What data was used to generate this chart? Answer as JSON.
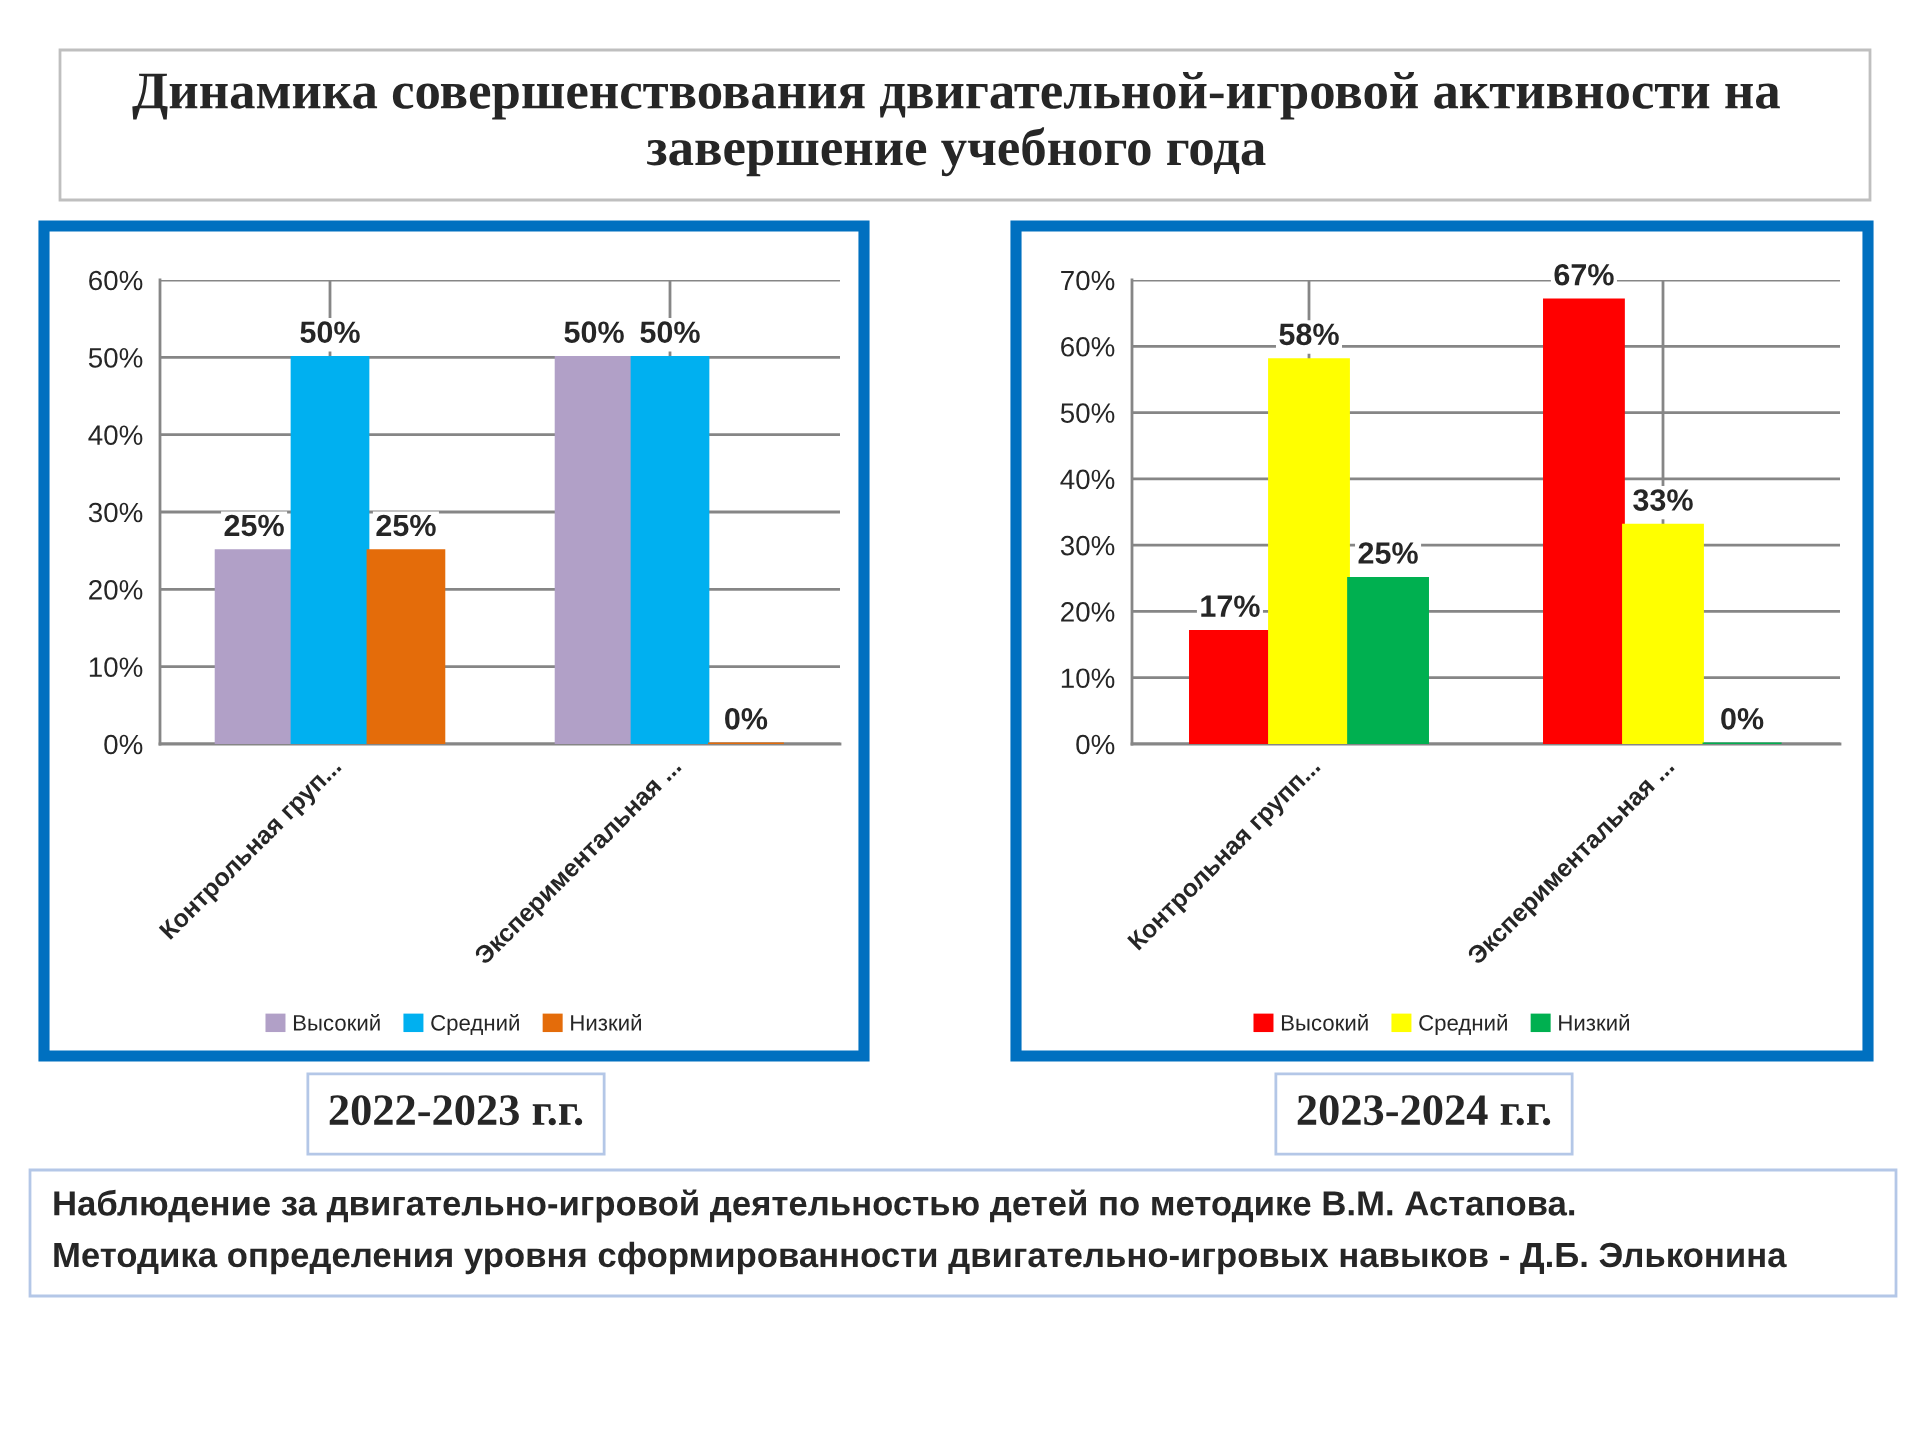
{
  "chart_data": [
    {
      "type": "bar",
      "title": "Динамика совершенствования двигательной-игровой активности на завершение учебного года",
      "subtitle": "2022-2023 г.г.",
      "categories": [
        "Контрольная груп...",
        "Экспериментальная ..."
      ],
      "series": [
        {
          "name": "Высокий",
          "color": "#b1a0c7",
          "values": [
            25,
            50
          ],
          "value_labels": [
            "25%",
            "50%"
          ]
        },
        {
          "name": "Средний",
          "color": "#00b0f0",
          "values": [
            50,
            50
          ],
          "value_labels": [
            "50%",
            "50%"
          ]
        },
        {
          "name": "Низкий",
          "color": "#e46c0a",
          "values": [
            25,
            0
          ],
          "value_labels": [
            "25%",
            "0%"
          ]
        }
      ],
      "ylim": [
        0,
        60
      ],
      "yticks": [
        {
          "value": 0,
          "label": "0%"
        },
        {
          "value": 10,
          "label": "10%"
        },
        {
          "value": 20,
          "label": "20%"
        },
        {
          "value": 30,
          "label": "30%"
        },
        {
          "value": 40,
          "label": "40%"
        },
        {
          "value": 50,
          "label": "50%"
        },
        {
          "value": 60,
          "label": "60%"
        }
      ],
      "grid": true,
      "legend": "bottom",
      "annotations": [
        "Наблюдение за двигательно-игровой деятельностью детей по методике В.М. Астапова.",
        "Методика определения уровня сформированности двигательно-игровых навыков - Д.Б. Эльконина"
      ]
    },
    {
      "type": "bar",
      "subtitle": "2023-2024 г.г.",
      "categories": [
        "Контрольная групп...",
        "Экспериментальная ..."
      ],
      "series": [
        {
          "name": "Высокий",
          "color": "#ff0000",
          "values": [
            17,
            67
          ],
          "value_labels": [
            "17%",
            "67%"
          ]
        },
        {
          "name": "Средний",
          "color": "#ffff00",
          "values": [
            58,
            33
          ],
          "value_labels": [
            "58%",
            "33%"
          ]
        },
        {
          "name": "Низкий",
          "color": "#00b050",
          "values": [
            25,
            0
          ],
          "value_labels": [
            "25%",
            "0%"
          ]
        }
      ],
      "ylim": [
        0,
        70
      ],
      "yticks": [
        {
          "value": 0,
          "label": "0%"
        },
        {
          "value": 10,
          "label": "10%"
        },
        {
          "value": 20,
          "label": "20%"
        },
        {
          "value": 30,
          "label": "30%"
        },
        {
          "value": 40,
          "label": "40%"
        },
        {
          "value": 50,
          "label": "50%"
        },
        {
          "value": 60,
          "label": "60%"
        },
        {
          "value": 70,
          "label": "70%"
        }
      ],
      "grid": true,
      "legend": "bottom"
    }
  ]
}
